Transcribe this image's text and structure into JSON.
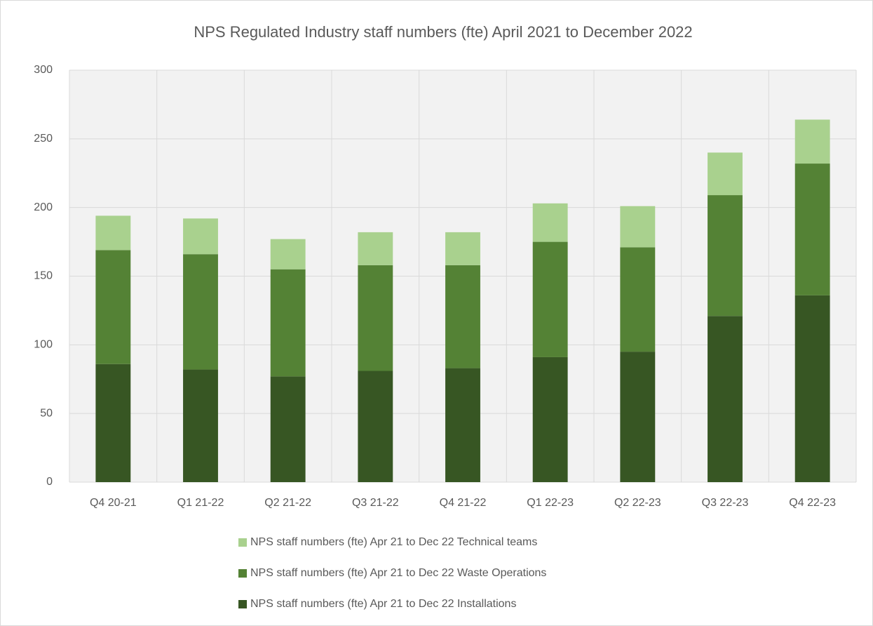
{
  "chart_data": {
    "type": "stacked_bar",
    "title": "NPS Regulated Industry staff numbers (fte) April 2021 to December 2022",
    "categories": [
      "Q4 20-21",
      "Q1 21-22",
      "Q2 21-22",
      "Q3 21-22",
      "Q4 21-22",
      "Q1 22-23",
      "Q2 22-23",
      "Q3 22-23",
      "Q4 22-23"
    ],
    "series": [
      {
        "name": "NPS staff numbers (fte)  Apr 21 to Dec 22 Technical teams",
        "color": "#a9d18e",
        "values": [
          25,
          26,
          22,
          24,
          24,
          28,
          30,
          31,
          32
        ]
      },
      {
        "name": "NPS staff numbers (fte)  Apr 21 to Dec 22 Waste Operations",
        "color": "#548235",
        "values": [
          83,
          84,
          78,
          77,
          75,
          84,
          76,
          88,
          96
        ]
      },
      {
        "name": "NPS staff numbers (fte)  Apr 21 to Dec 22 Installations",
        "color": "#375623",
        "values": [
          86,
          82,
          77,
          81,
          83,
          91,
          95,
          121,
          136
        ]
      }
    ],
    "ylim": [
      0,
      300
    ],
    "yticks": [
      0,
      50,
      100,
      150,
      200,
      250,
      300
    ],
    "grid": true
  }
}
